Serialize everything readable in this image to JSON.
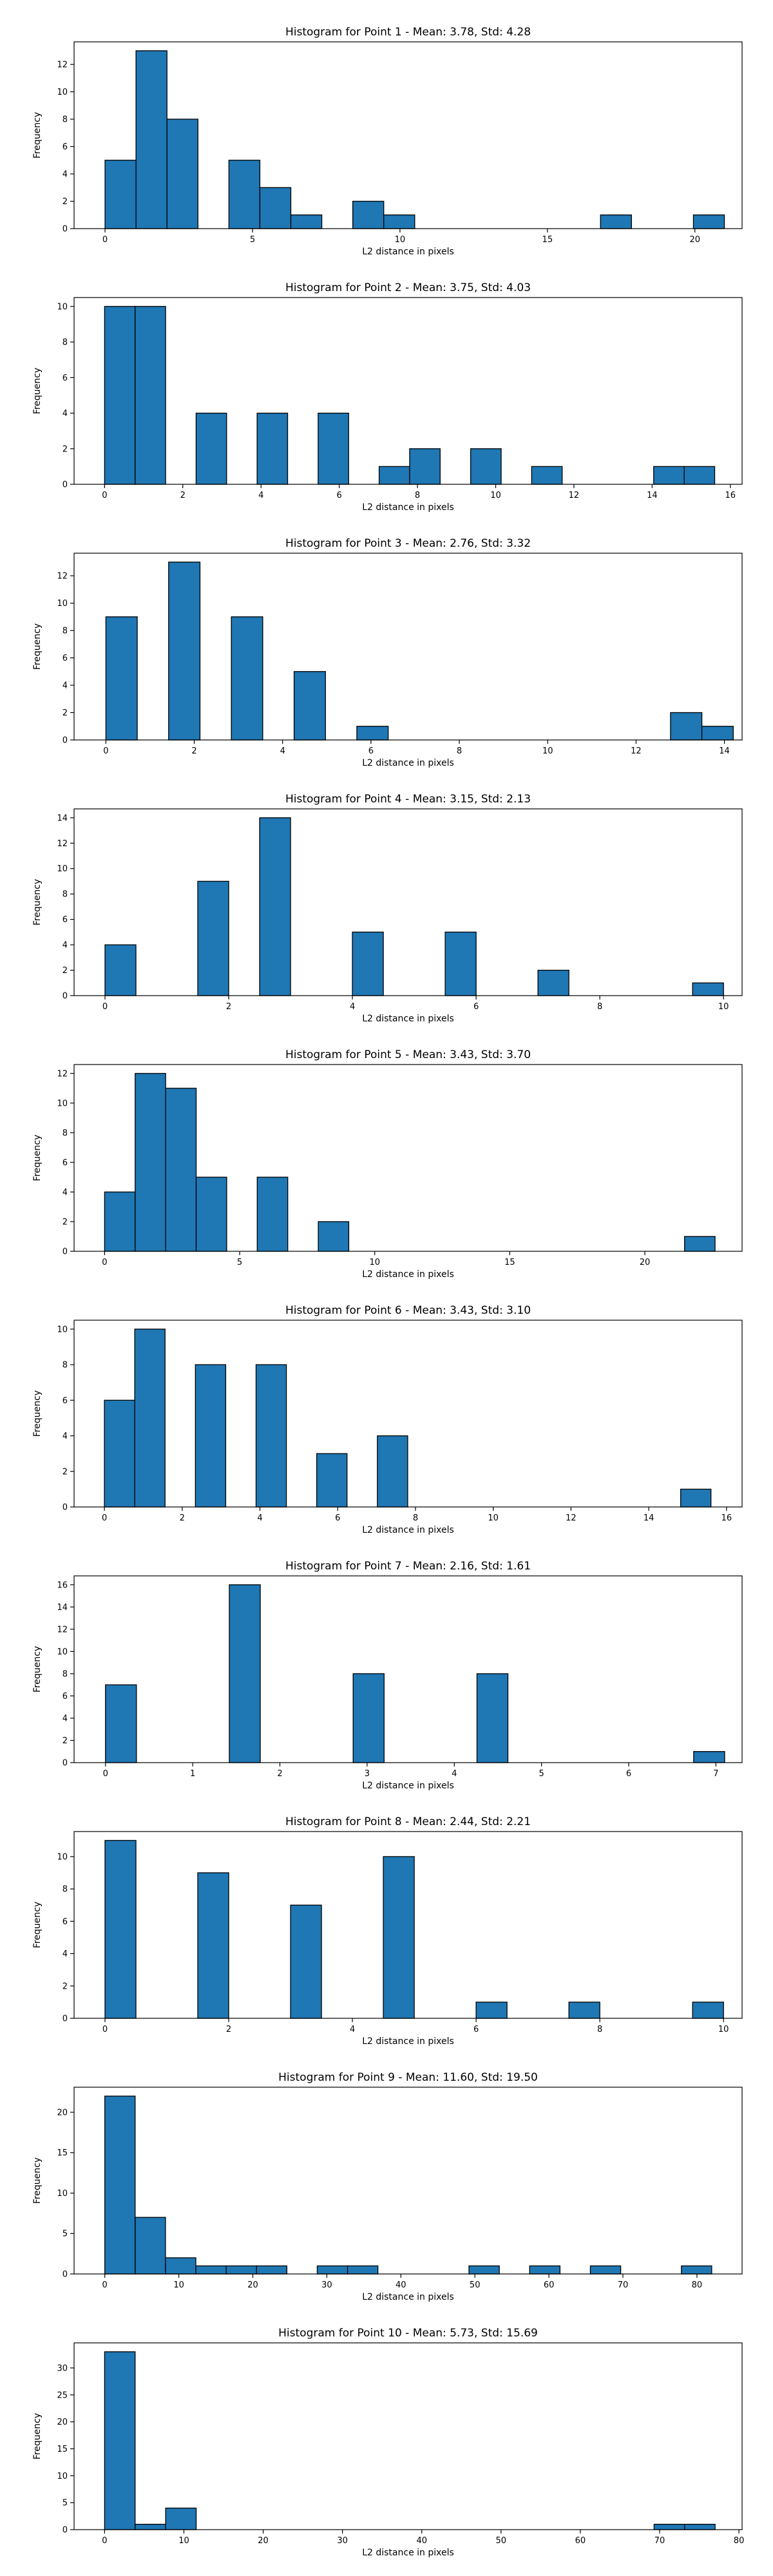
{
  "chart_data": [
    {
      "type": "bar",
      "title": "Histogram for Point 1 - Mean: 3.78, Std: 4.28",
      "xlabel": "L2 distance in pixels",
      "ylabel": "Frequency",
      "xlim": [
        -1.05,
        21.6
      ],
      "ylim": [
        0,
        13.65
      ],
      "xticks": [
        0,
        5,
        10,
        15,
        20
      ],
      "yticks": [
        0,
        2,
        4,
        6,
        8,
        10,
        12
      ],
      "bin_start": 0.0,
      "bin_width": 1.05,
      "counts": [
        5,
        13,
        8,
        0,
        5,
        3,
        1,
        0,
        2,
        1,
        0,
        0,
        0,
        0,
        0,
        0,
        1,
        0,
        0,
        1
      ],
      "grid": false,
      "legend": "none"
    },
    {
      "type": "bar",
      "title": "Histogram for Point 2 - Mean: 3.75, Std: 4.03",
      "xlabel": "L2 distance in pixels",
      "ylabel": "Frequency",
      "xlim": [
        -0.78,
        16.3
      ],
      "ylim": [
        0,
        10.5
      ],
      "xticks": [
        0,
        2,
        4,
        6,
        8,
        10,
        12,
        14,
        16
      ],
      "yticks": [
        0,
        2,
        4,
        6,
        8,
        10
      ],
      "bin_start": 0.0,
      "bin_width": 0.78,
      "counts": [
        10,
        10,
        0,
        4,
        0,
        4,
        0,
        4,
        0,
        1,
        2,
        0,
        2,
        0,
        1,
        0,
        0,
        0,
        1,
        1
      ],
      "grid": false,
      "legend": "none"
    },
    {
      "type": "bar",
      "title": "Histogram for Point 3 - Mean: 2.76, Std: 3.32",
      "xlabel": "L2 distance in pixels",
      "ylabel": "Frequency",
      "xlim": [
        -0.72,
        14.4
      ],
      "ylim": [
        0,
        13.65
      ],
      "xticks": [
        0,
        2,
        4,
        6,
        8,
        10,
        12,
        14
      ],
      "yticks": [
        0,
        2,
        4,
        6,
        8,
        10,
        12
      ],
      "bin_start": 0.0,
      "bin_width": 0.71,
      "counts": [
        9,
        0,
        13,
        0,
        9,
        0,
        5,
        0,
        1,
        0,
        0,
        0,
        0,
        0,
        0,
        0,
        0,
        0,
        2,
        1
      ],
      "grid": false,
      "legend": "none"
    },
    {
      "type": "bar",
      "title": "Histogram for Point 4 - Mean: 3.15, Std: 2.13",
      "xlabel": "L2 distance in pixels",
      "ylabel": "Frequency",
      "xlim": [
        -0.5,
        10.3
      ],
      "ylim": [
        0,
        14.7
      ],
      "xticks": [
        0,
        2,
        4,
        6,
        8,
        10
      ],
      "yticks": [
        0,
        2,
        4,
        6,
        8,
        10,
        12,
        14
      ],
      "bin_start": 0.0,
      "bin_width": 0.5,
      "counts": [
        4,
        0,
        0,
        9,
        0,
        14,
        0,
        0,
        5,
        0,
        0,
        5,
        0,
        0,
        2,
        0,
        0,
        0,
        0,
        1
      ],
      "grid": false,
      "legend": "none"
    },
    {
      "type": "bar",
      "title": "Histogram for Point 5 - Mean: 3.43, Std: 3.70",
      "xlabel": "L2 distance in pixels",
      "ylabel": "Frequency",
      "xlim": [
        -1.13,
        23.6
      ],
      "ylim": [
        0,
        12.6
      ],
      "xticks": [
        0,
        5,
        10,
        15,
        20
      ],
      "yticks": [
        0,
        2,
        4,
        6,
        8,
        10,
        12
      ],
      "bin_start": 0.0,
      "bin_width": 1.13,
      "counts": [
        4,
        12,
        11,
        5,
        0,
        5,
        0,
        2,
        0,
        0,
        0,
        0,
        0,
        0,
        0,
        0,
        0,
        0,
        0,
        1
      ],
      "grid": false,
      "legend": "none"
    },
    {
      "type": "bar",
      "title": "Histogram for Point 6 - Mean: 3.43, Std: 3.10",
      "xlabel": "L2 distance in pixels",
      "ylabel": "Frequency",
      "xlim": [
        -0.78,
        16.4
      ],
      "ylim": [
        0,
        10.5
      ],
      "xticks": [
        0,
        2,
        4,
        6,
        8,
        10,
        12,
        14,
        16
      ],
      "yticks": [
        0,
        2,
        4,
        6,
        8,
        10
      ],
      "bin_start": 0.0,
      "bin_width": 0.78,
      "counts": [
        6,
        10,
        0,
        8,
        0,
        8,
        0,
        3,
        0,
        4,
        0,
        0,
        0,
        0,
        0,
        0,
        0,
        0,
        0,
        1
      ],
      "grid": false,
      "legend": "none"
    },
    {
      "type": "bar",
      "title": "Histogram for Point 7 - Mean: 2.16, Std: 1.61",
      "xlabel": "L2 distance in pixels",
      "ylabel": "Frequency",
      "xlim": [
        -0.36,
        7.3
      ],
      "ylim": [
        0,
        16.8
      ],
      "xticks": [
        0,
        1,
        2,
        3,
        4,
        5,
        6,
        7
      ],
      "yticks": [
        0,
        2,
        4,
        6,
        8,
        10,
        12,
        14,
        16
      ],
      "bin_start": 0.0,
      "bin_width": 0.355,
      "counts": [
        7,
        0,
        0,
        0,
        16,
        0,
        0,
        0,
        8,
        0,
        0,
        0,
        8,
        0,
        0,
        0,
        0,
        0,
        0,
        1
      ],
      "grid": false,
      "legend": "none"
    },
    {
      "type": "bar",
      "title": "Histogram for Point 8 - Mean: 2.44, Std: 2.21",
      "xlabel": "L2 distance in pixels",
      "ylabel": "Frequency",
      "xlim": [
        -0.5,
        10.3
      ],
      "ylim": [
        0,
        11.55
      ],
      "xticks": [
        0,
        2,
        4,
        6,
        8,
        10
      ],
      "yticks": [
        0,
        2,
        4,
        6,
        8,
        10
      ],
      "bin_start": 0.0,
      "bin_width": 0.5,
      "counts": [
        11,
        0,
        0,
        9,
        0,
        0,
        7,
        0,
        0,
        10,
        0,
        0,
        1,
        0,
        0,
        1,
        0,
        0,
        0,
        1
      ],
      "grid": false,
      "legend": "none"
    },
    {
      "type": "bar",
      "title": "Histogram for Point 9 - Mean: 11.60, Std: 19.50",
      "xlabel": "L2 distance in pixels",
      "ylabel": "Frequency",
      "xlim": [
        -4.15,
        86.1
      ],
      "ylim": [
        0,
        23.1
      ],
      "xticks": [
        0,
        10,
        20,
        30,
        40,
        50,
        60,
        70,
        80
      ],
      "yticks": [
        0,
        5,
        10,
        15,
        20
      ],
      "bin_start": 0.0,
      "bin_width": 4.1,
      "counts": [
        22,
        7,
        2,
        1,
        1,
        1,
        0,
        1,
        1,
        0,
        0,
        0,
        1,
        0,
        1,
        0,
        1,
        0,
        0,
        1
      ],
      "grid": false,
      "legend": "none"
    },
    {
      "type": "bar",
      "title": "Histogram for Point 10 - Mean: 5.73, Std: 15.69",
      "xlabel": "L2 distance in pixels",
      "ylabel": "Frequency",
      "xlim": [
        -3.85,
        80.4
      ],
      "ylim": [
        0,
        34.65
      ],
      "xticks": [
        0,
        10,
        20,
        30,
        40,
        50,
        60,
        70,
        80
      ],
      "yticks": [
        0,
        5,
        10,
        15,
        20,
        25,
        30
      ],
      "bin_start": 0.0,
      "bin_width": 3.85,
      "counts": [
        33,
        1,
        4,
        0,
        0,
        0,
        0,
        0,
        0,
        0,
        0,
        0,
        0,
        0,
        0,
        0,
        0,
        0,
        1,
        1
      ],
      "grid": false,
      "legend": "none"
    }
  ]
}
